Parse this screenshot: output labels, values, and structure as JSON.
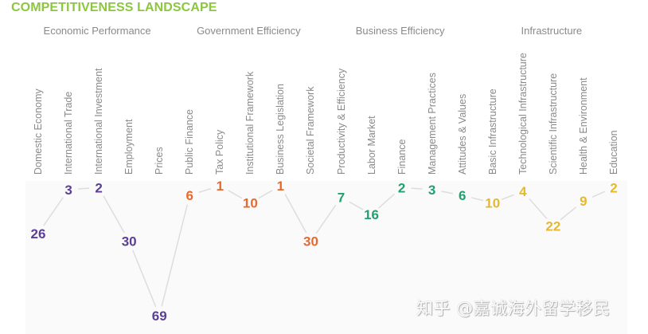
{
  "chart_data": {
    "type": "line",
    "title": "COMPETITIVENESS LANDSCAPE",
    "xlabel": "",
    "ylabel": "",
    "y_inverted": true,
    "ylim": [
      1,
      69
    ],
    "grid": false,
    "groups": [
      {
        "name": "Economic Performance",
        "color": "#5b3f96",
        "categories": [
          "Domestic Economy",
          "International Trade",
          "International Investment",
          "Employment",
          "Prices"
        ],
        "values": [
          26,
          3,
          2,
          30,
          69
        ]
      },
      {
        "name": "Government Efficiency",
        "color": "#e8692e",
        "categories": [
          "Public Finance",
          "Tax Policy",
          "Institutional Framework",
          "Business Legislation",
          "Societal Framework"
        ],
        "values": [
          6,
          1,
          10,
          1,
          30
        ]
      },
      {
        "name": "Business Efficiency",
        "color": "#23a06f",
        "categories": [
          "Productivity & Efficiency",
          "Labor Market",
          "Finance",
          "Management Practices",
          "Attitudes & Values"
        ],
        "values": [
          7,
          16,
          2,
          3,
          6
        ]
      },
      {
        "name": "Infrastructure",
        "color": "#e6b82e",
        "categories": [
          "Basic Infrastructure",
          "Technological Infrastructure",
          "Scientific Infrastructure",
          "Health & Environment",
          "Education"
        ],
        "values": [
          10,
          4,
          22,
          9,
          2
        ]
      }
    ],
    "line_color": "#dddddd"
  },
  "watermark": "知乎 @嘉诚海外留学移民"
}
